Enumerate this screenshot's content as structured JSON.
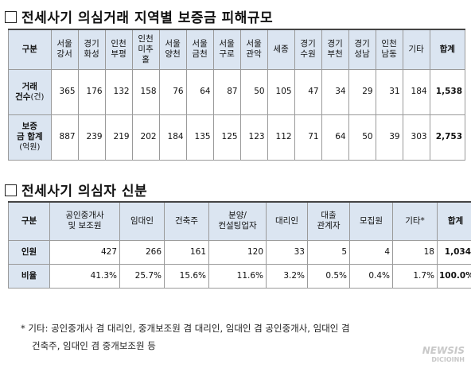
{
  "section1": {
    "title": "전세사기 의심거래 지역별 보증금 피해규모",
    "header_label": "구분",
    "regions": [
      "서울\n강서",
      "경기\n화성",
      "인천\n부평",
      "인천\n미추\n홀",
      "서울\n양천",
      "서울\n금천",
      "서울\n구로",
      "서울\n관악",
      "세종",
      "경기\n수원",
      "경기\n부천",
      "경기\n성남",
      "인천\n남동",
      "기타"
    ],
    "total_label": "합계",
    "row1": {
      "label": "거래",
      "label2": "건수",
      "unit": "(건)",
      "values": [
        "365",
        "176",
        "132",
        "158",
        "76",
        "64",
        "87",
        "50",
        "105",
        "47",
        "34",
        "29",
        "31",
        "184"
      ],
      "total": "1,538"
    },
    "row2": {
      "label": "보증",
      "label2": "금 합계",
      "unit": "(억원)",
      "values": [
        "887",
        "239",
        "219",
        "202",
        "184",
        "135",
        "125",
        "123",
        "112",
        "71",
        "64",
        "50",
        "39",
        "303"
      ],
      "total": "2,753"
    }
  },
  "section2": {
    "title": "전세사기 의심자 신분",
    "header_label": "구분",
    "categories": [
      "공인중개사\n및 보조원",
      "임대인",
      "건축주",
      "분양/\n컨설팅업자",
      "대리인",
      "대출\n관계자",
      "모집원",
      "기타*"
    ],
    "total_label": "합계",
    "row1": {
      "label": "인원",
      "values": [
        "427",
        "266",
        "161",
        "120",
        "33",
        "5",
        "4",
        "18"
      ],
      "total": "1,034"
    },
    "row2": {
      "label": "비율",
      "values": [
        "41.3%",
        "25.7%",
        "15.6%",
        "11.6%",
        "3.2%",
        "0.5%",
        "0.4%",
        "1.7%"
      ],
      "total": "100.0%"
    }
  },
  "footnote": {
    "line1": "* 기타: 공인중개사 겸 대리인, 중개보조원 겸 대리인, 임대인 겸 공인중개사, 임대인 겸",
    "line2": "건축주, 임대인 겸 중개보조원 등"
  },
  "watermark": {
    "text": "NEWSIS",
    "sub": "DICIOINH"
  }
}
